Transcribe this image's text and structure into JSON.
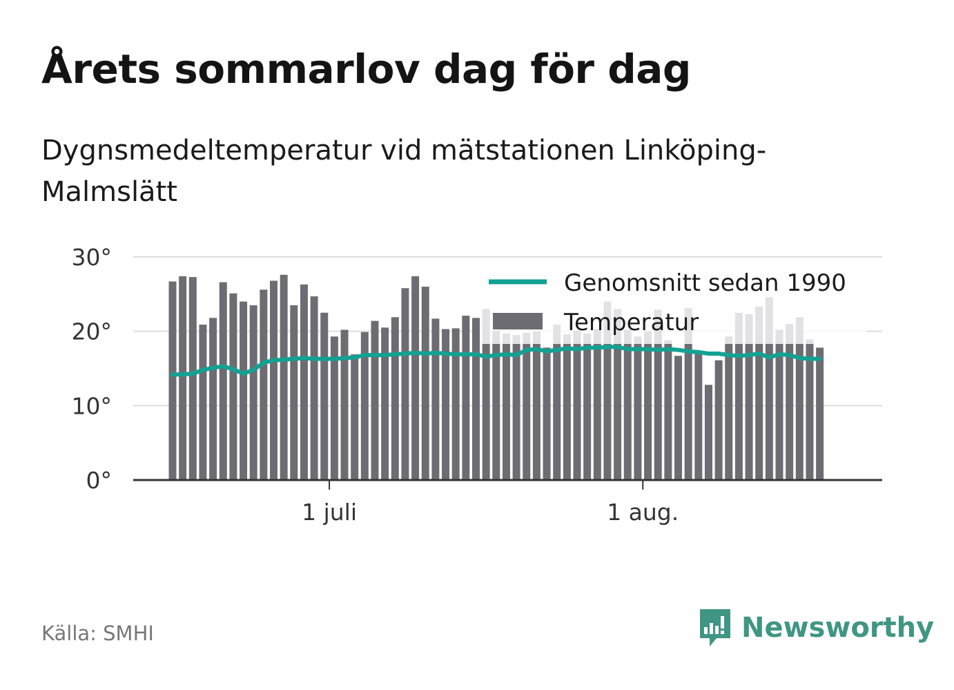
{
  "title": "Årets sommarlov dag för dag",
  "subtitle": "Dygnsmedeltemperatur vid mätstationen Linköping-Malmslätt",
  "source": "Källa: SMHI",
  "brand": {
    "name": "Newsworthy",
    "color": "#3f9683"
  },
  "colors": {
    "bars": "#6d6c72",
    "line": "#12a293",
    "grid": "#dddddd",
    "axis": "#333333"
  },
  "chart_data": {
    "type": "bar",
    "ylim": [
      0,
      30
    ],
    "y_ticks": [
      {
        "value": 0,
        "label": "0°"
      },
      {
        "value": 10,
        "label": "10°"
      },
      {
        "value": 20,
        "label": "20°"
      },
      {
        "value": 30,
        "label": "30°"
      }
    ],
    "x_ticks": [
      {
        "day_index": 16,
        "label": "1 juli"
      },
      {
        "day_index": 47,
        "label": "1 aug."
      }
    ],
    "legend_position": "top-right",
    "grid": true,
    "series": [
      {
        "name": "Temperatur",
        "type": "bar",
        "values": [
          26.7,
          27.4,
          27.3,
          20.9,
          21.8,
          26.6,
          25.1,
          24.0,
          23.5,
          25.6,
          26.8,
          27.6,
          23.5,
          26.3,
          24.7,
          22.5,
          19.3,
          20.2,
          16.9,
          19.9,
          21.4,
          20.5,
          21.9,
          25.8,
          27.4,
          26.0,
          21.7,
          20.3,
          20.4,
          22.1,
          21.8,
          23.0,
          20.1,
          19.7,
          19.5,
          19.8,
          20.0,
          17.8,
          20.9,
          19.6,
          20.1,
          19.7,
          20.3,
          24.0,
          23.0,
          20.2,
          19.3,
          20.0,
          22.9,
          18.8,
          16.7,
          23.1,
          17.4,
          12.8,
          16.1,
          19.3,
          22.5,
          22.3,
          23.3,
          24.6,
          20.2,
          21.0,
          21.9,
          18.9,
          17.8
        ]
      },
      {
        "name": "Genomsnitt sedan 1990",
        "type": "line",
        "values": [
          14.2,
          14.2,
          14.3,
          14.8,
          15.1,
          15.3,
          14.9,
          14.3,
          14.8,
          15.8,
          16.1,
          16.2,
          16.3,
          16.4,
          16.3,
          16.3,
          16.3,
          16.4,
          16.5,
          16.8,
          16.8,
          16.8,
          16.9,
          17.0,
          17.1,
          17.0,
          17.1,
          17.0,
          16.9,
          16.9,
          16.9,
          16.6,
          16.8,
          16.9,
          16.8,
          17.5,
          17.6,
          17.3,
          17.5,
          17.7,
          17.6,
          17.8,
          17.8,
          17.9,
          17.9,
          17.6,
          17.6,
          17.6,
          17.5,
          17.6,
          17.5,
          17.3,
          17.2,
          17.0,
          17.0,
          16.8,
          16.7,
          16.8,
          17.0,
          16.5,
          16.9,
          16.8,
          16.4,
          16.3,
          16.3
        ]
      }
    ]
  }
}
